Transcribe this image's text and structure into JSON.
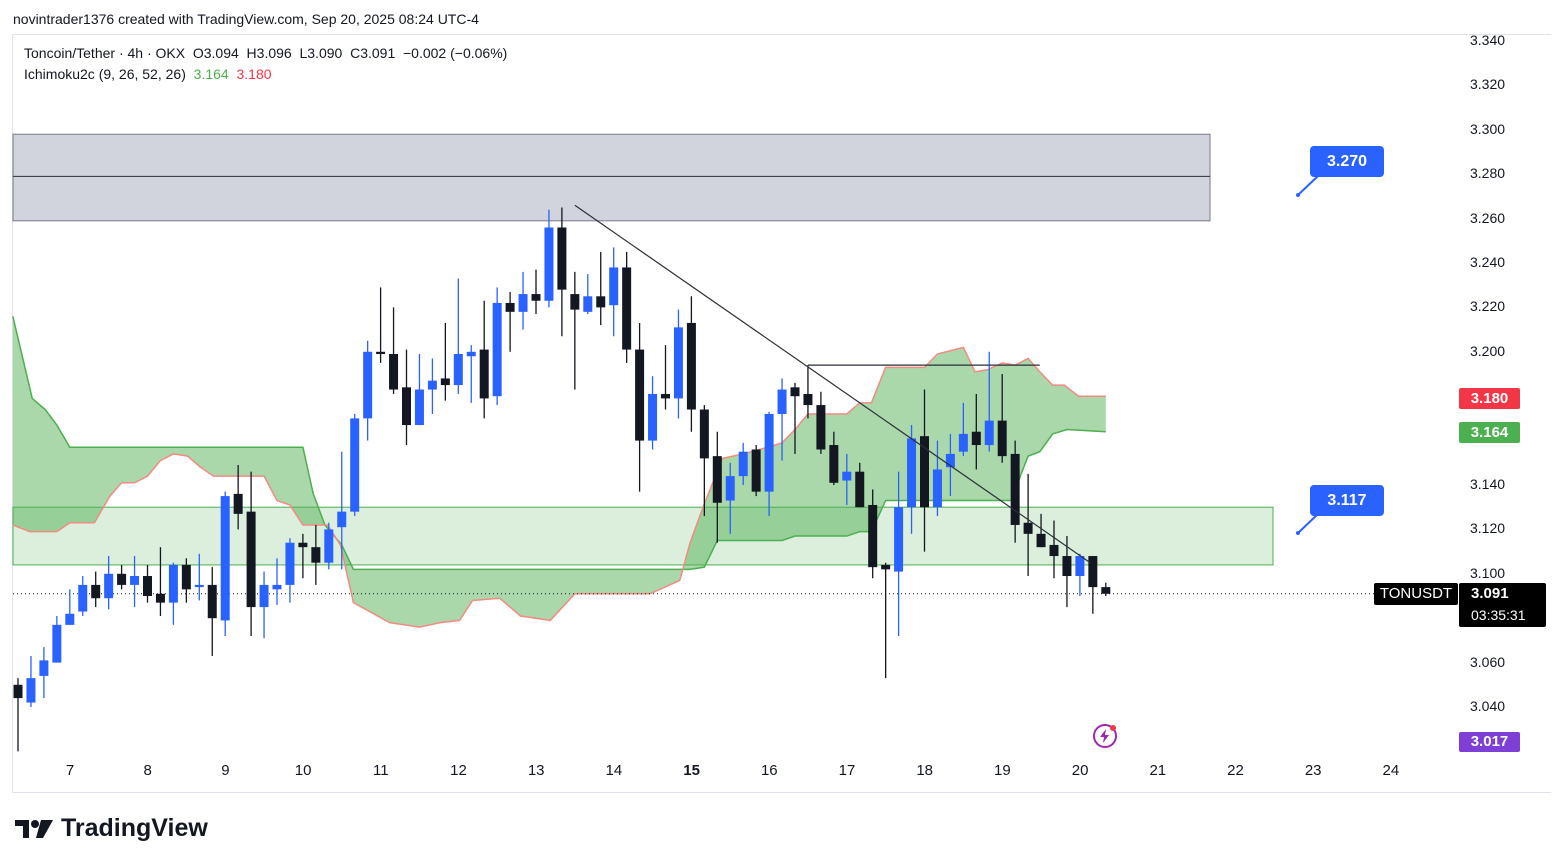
{
  "attribution": "novintrader1376 created with TradingView.com, Sep 20, 2025 08:24 UTC-4",
  "legend": {
    "symbol_line": "Toncoin/Tether · 4h · OKX  O3.094  H3.096  L3.090  C3.091  −0.002 (−0.06%)",
    "indicator_name": "Ichimoku2c (9, 26, 52, 26)",
    "indicator_value_a": "3.164",
    "indicator_value_b": "3.180"
  },
  "price_axis": [
    "3.340",
    "3.320",
    "3.300",
    "3.280",
    "3.260",
    "3.240",
    "3.220",
    "3.200",
    "3.140",
    "3.120",
    "3.100",
    "3.060",
    "3.040"
  ],
  "time_axis": [
    {
      "label": "7",
      "bold": false
    },
    {
      "label": "8",
      "bold": false
    },
    {
      "label": "9",
      "bold": false
    },
    {
      "label": "10",
      "bold": false
    },
    {
      "label": "11",
      "bold": false
    },
    {
      "label": "12",
      "bold": false
    },
    {
      "label": "13",
      "bold": false
    },
    {
      "label": "14",
      "bold": false
    },
    {
      "label": "15",
      "bold": true
    },
    {
      "label": "16",
      "bold": false
    },
    {
      "label": "17",
      "bold": false
    },
    {
      "label": "18",
      "bold": false
    },
    {
      "label": "19",
      "bold": false
    },
    {
      "label": "20",
      "bold": false
    },
    {
      "label": "21",
      "bold": false
    },
    {
      "label": "22",
      "bold": false
    },
    {
      "label": "23",
      "bold": false
    },
    {
      "label": "24",
      "bold": false
    }
  ],
  "price_tags": {
    "span_b": {
      "value": "3.180",
      "color": "#f23645"
    },
    "span_a": {
      "value": "3.164",
      "color": "#4caf50"
    },
    "symbol": "TONUSDT",
    "last_price": "3.091",
    "countdown": "03:35:31",
    "low_marker": {
      "value": "3.017",
      "color": "#7e3fd6"
    }
  },
  "callouts": [
    {
      "label": "3.270"
    },
    {
      "label": "3.117"
    }
  ],
  "logo_text": "TradingView",
  "colors": {
    "up": "#2962ff",
    "down": "#131722",
    "cloud": "#a5d6a7",
    "span_a": "#4caf50",
    "span_b": "#f28b82"
  },
  "chart_data": {
    "type": "candlestick",
    "symbol": "TONUSDT",
    "interval": "4h",
    "ylim": [
      3.017,
      3.34
    ],
    "candles_ohlc": [
      [
        3.05,
        3.053,
        3.02,
        3.044
      ],
      [
        3.042,
        3.063,
        3.04,
        3.053
      ],
      [
        3.054,
        3.067,
        3.044,
        3.061
      ],
      [
        3.06,
        3.081,
        3.06,
        3.077
      ],
      [
        3.077,
        3.093,
        3.077,
        3.082
      ],
      [
        3.083,
        3.099,
        3.081,
        3.095
      ],
      [
        3.095,
        3.101,
        3.085,
        3.089
      ],
      [
        3.089,
        3.108,
        3.084,
        3.1
      ],
      [
        3.1,
        3.104,
        3.093,
        3.095
      ],
      [
        3.095,
        3.108,
        3.085,
        3.099
      ],
      [
        3.099,
        3.104,
        3.087,
        3.09
      ],
      [
        3.091,
        3.112,
        3.081,
        3.087
      ],
      [
        3.087,
        3.105,
        3.077,
        3.104
      ],
      [
        3.104,
        3.107,
        3.087,
        3.093
      ],
      [
        3.094,
        3.109,
        3.088,
        3.095
      ],
      [
        3.095,
        3.103,
        3.063,
        3.08
      ],
      [
        3.079,
        3.137,
        3.072,
        3.135
      ],
      [
        3.136,
        3.149,
        3.12,
        3.127
      ],
      [
        3.128,
        3.146,
        3.072,
        3.085
      ],
      [
        3.085,
        3.101,
        3.071,
        3.095
      ],
      [
        3.093,
        3.107,
        3.086,
        3.095
      ],
      [
        3.095,
        3.116,
        3.087,
        3.114
      ],
      [
        3.114,
        3.118,
        3.098,
        3.112
      ],
      [
        3.112,
        3.122,
        3.095,
        3.105
      ],
      [
        3.105,
        3.123,
        3.102,
        3.12
      ],
      [
        3.121,
        3.155,
        3.102,
        3.128
      ],
      [
        3.128,
        3.172,
        3.126,
        3.17
      ],
      [
        3.17,
        3.205,
        3.16,
        3.2
      ],
      [
        3.2,
        3.229,
        3.195,
        3.199
      ],
      [
        3.199,
        3.22,
        3.181,
        3.183
      ],
      [
        3.184,
        3.201,
        3.158,
        3.167
      ],
      [
        3.167,
        3.199,
        3.167,
        3.183
      ],
      [
        3.183,
        3.197,
        3.172,
        3.187
      ],
      [
        3.188,
        3.213,
        3.178,
        3.185
      ],
      [
        3.185,
        3.233,
        3.181,
        3.199
      ],
      [
        3.198,
        3.203,
        3.177,
        3.2
      ],
      [
        3.201,
        3.223,
        3.17,
        3.179
      ],
      [
        3.18,
        3.229,
        3.176,
        3.222
      ],
      [
        3.222,
        3.227,
        3.2,
        3.218
      ],
      [
        3.218,
        3.236,
        3.21,
        3.226
      ],
      [
        3.226,
        3.237,
        3.217,
        3.223
      ],
      [
        3.223,
        3.264,
        3.22,
        3.256
      ],
      [
        3.256,
        3.265,
        3.207,
        3.228
      ],
      [
        3.226,
        3.236,
        3.183,
        3.219
      ],
      [
        3.218,
        3.235,
        3.217,
        3.225
      ],
      [
        3.225,
        3.245,
        3.212,
        3.22
      ],
      [
        3.221,
        3.247,
        3.207,
        3.238
      ],
      [
        3.238,
        3.245,
        3.195,
        3.201
      ],
      [
        3.201,
        3.213,
        3.137,
        3.16
      ],
      [
        3.16,
        3.189,
        3.156,
        3.181
      ],
      [
        3.181,
        3.203,
        3.174,
        3.179
      ],
      [
        3.179,
        3.219,
        3.17,
        3.211
      ],
      [
        3.213,
        3.225,
        3.164,
        3.174
      ],
      [
        3.174,
        3.176,
        3.126,
        3.152
      ],
      [
        3.153,
        3.164,
        3.114,
        3.132
      ],
      [
        3.133,
        3.15,
        3.118,
        3.144
      ],
      [
        3.144,
        3.159,
        3.14,
        3.155
      ],
      [
        3.156,
        3.158,
        3.135,
        3.137
      ],
      [
        3.137,
        3.173,
        3.126,
        3.172
      ],
      [
        3.172,
        3.188,
        3.151,
        3.183
      ],
      [
        3.184,
        3.186,
        3.154,
        3.18
      ],
      [
        3.181,
        3.194,
        3.17,
        3.176
      ],
      [
        3.176,
        3.182,
        3.154,
        3.156
      ],
      [
        3.158,
        3.164,
        3.14,
        3.141
      ],
      [
        3.142,
        3.154,
        3.131,
        3.146
      ],
      [
        3.146,
        3.15,
        3.13,
        3.13
      ],
      [
        3.131,
        3.138,
        3.098,
        3.103
      ],
      [
        3.104,
        3.105,
        3.053,
        3.102
      ],
      [
        3.101,
        3.146,
        3.072,
        3.13
      ],
      [
        3.13,
        3.167,
        3.118,
        3.161
      ],
      [
        3.162,
        3.183,
        3.11,
        3.13
      ],
      [
        3.13,
        3.16,
        3.126,
        3.147
      ],
      [
        3.148,
        3.163,
        3.135,
        3.154
      ],
      [
        3.155,
        3.177,
        3.153,
        3.163
      ],
      [
        3.164,
        3.181,
        3.147,
        3.158
      ],
      [
        3.158,
        3.2,
        3.155,
        3.169
      ],
      [
        3.169,
        3.19,
        3.15,
        3.153
      ],
      [
        3.154,
        3.16,
        3.114,
        3.122
      ],
      [
        3.123,
        3.145,
        3.099,
        3.118
      ],
      [
        3.118,
        3.127,
        3.112,
        3.112
      ],
      [
        3.113,
        3.124,
        3.098,
        3.108
      ],
      [
        3.108,
        3.117,
        3.085,
        3.099
      ],
      [
        3.099,
        3.109,
        3.09,
        3.108
      ],
      [
        3.108,
        3.108,
        3.082,
        3.094
      ],
      [
        3.094,
        3.096,
        3.09,
        3.091
      ]
    ],
    "ichimoku_span_a": [
      [
        -0.4,
        3.216
      ],
      [
        1.1,
        3.179
      ],
      [
        2.1,
        3.174
      ],
      [
        3,
        3.167
      ],
      [
        4,
        3.157
      ],
      [
        22,
        3.157
      ],
      [
        22.8,
        3.136
      ],
      [
        23.7,
        3.122
      ],
      [
        25,
        3.113
      ],
      [
        25.9,
        3.102
      ],
      [
        51.9,
        3.102
      ],
      [
        53,
        3.103
      ],
      [
        54,
        3.115
      ],
      [
        59,
        3.115
      ],
      [
        60,
        3.117
      ],
      [
        64,
        3.117
      ],
      [
        65,
        3.119
      ],
      [
        65.9,
        3.119
      ],
      [
        67,
        3.133
      ],
      [
        76.8,
        3.133
      ],
      [
        77.4,
        3.144
      ],
      [
        78,
        3.153
      ],
      [
        78.9,
        3.155
      ],
      [
        79.9,
        3.163
      ],
      [
        81,
        3.165
      ],
      [
        84,
        3.164
      ]
    ],
    "ichimoku_span_b": [
      [
        -0.4,
        3.122
      ],
      [
        0.9,
        3.119
      ],
      [
        3,
        3.119
      ],
      [
        4,
        3.123
      ],
      [
        5.9,
        3.123
      ],
      [
        7.1,
        3.135
      ],
      [
        8,
        3.141
      ],
      [
        9,
        3.141
      ],
      [
        10,
        3.144
      ],
      [
        11,
        3.151
      ],
      [
        12,
        3.154
      ],
      [
        13.1,
        3.153
      ],
      [
        14.1,
        3.148
      ],
      [
        15.1,
        3.144
      ],
      [
        19,
        3.144
      ],
      [
        20,
        3.133
      ],
      [
        21,
        3.131
      ],
      [
        22,
        3.122
      ],
      [
        23.9,
        3.122
      ],
      [
        24.9,
        3.113
      ],
      [
        25.9,
        3.087
      ],
      [
        28.7,
        3.078
      ],
      [
        31,
        3.076
      ],
      [
        32.6,
        3.078
      ],
      [
        34.1,
        3.079
      ],
      [
        35.1,
        3.088
      ],
      [
        37.2,
        3.089
      ],
      [
        38.8,
        3.081
      ],
      [
        41.1,
        3.079
      ],
      [
        43,
        3.091
      ],
      [
        48.8,
        3.091
      ],
      [
        51.1,
        3.097
      ],
      [
        51.9,
        3.114
      ],
      [
        52.9,
        3.13
      ],
      [
        54.4,
        3.152
      ],
      [
        56,
        3.154
      ],
      [
        57.9,
        3.157
      ],
      [
        59,
        3.159
      ],
      [
        60,
        3.165
      ],
      [
        61,
        3.172
      ],
      [
        64,
        3.172
      ],
      [
        65,
        3.177
      ],
      [
        65.9,
        3.177
      ],
      [
        67,
        3.193
      ],
      [
        70,
        3.193
      ],
      [
        71,
        3.199
      ],
      [
        73,
        3.202
      ],
      [
        73.9,
        3.191
      ],
      [
        74.9,
        3.192
      ],
      [
        76,
        3.195
      ],
      [
        77,
        3.194
      ],
      [
        78,
        3.197
      ],
      [
        78.9,
        3.191
      ],
      [
        79.9,
        3.185
      ],
      [
        80.8,
        3.185
      ],
      [
        81.9,
        3.18
      ],
      [
        84,
        3.18
      ]
    ],
    "resistance_zone": {
      "low": 3.259,
      "mid": 3.279,
      "high": 3.298
    },
    "support_zone": {
      "low": 3.104,
      "high": 3.13
    },
    "trendline": {
      "from": [
        43,
        3.266
      ],
      "to": [
        82.8,
        3.105
      ]
    },
    "horizontal_ray": {
      "from": 61,
      "to": 78.9,
      "price": 3.194
    },
    "last_price": 3.091,
    "targets": [
      3.27,
      3.117
    ]
  }
}
